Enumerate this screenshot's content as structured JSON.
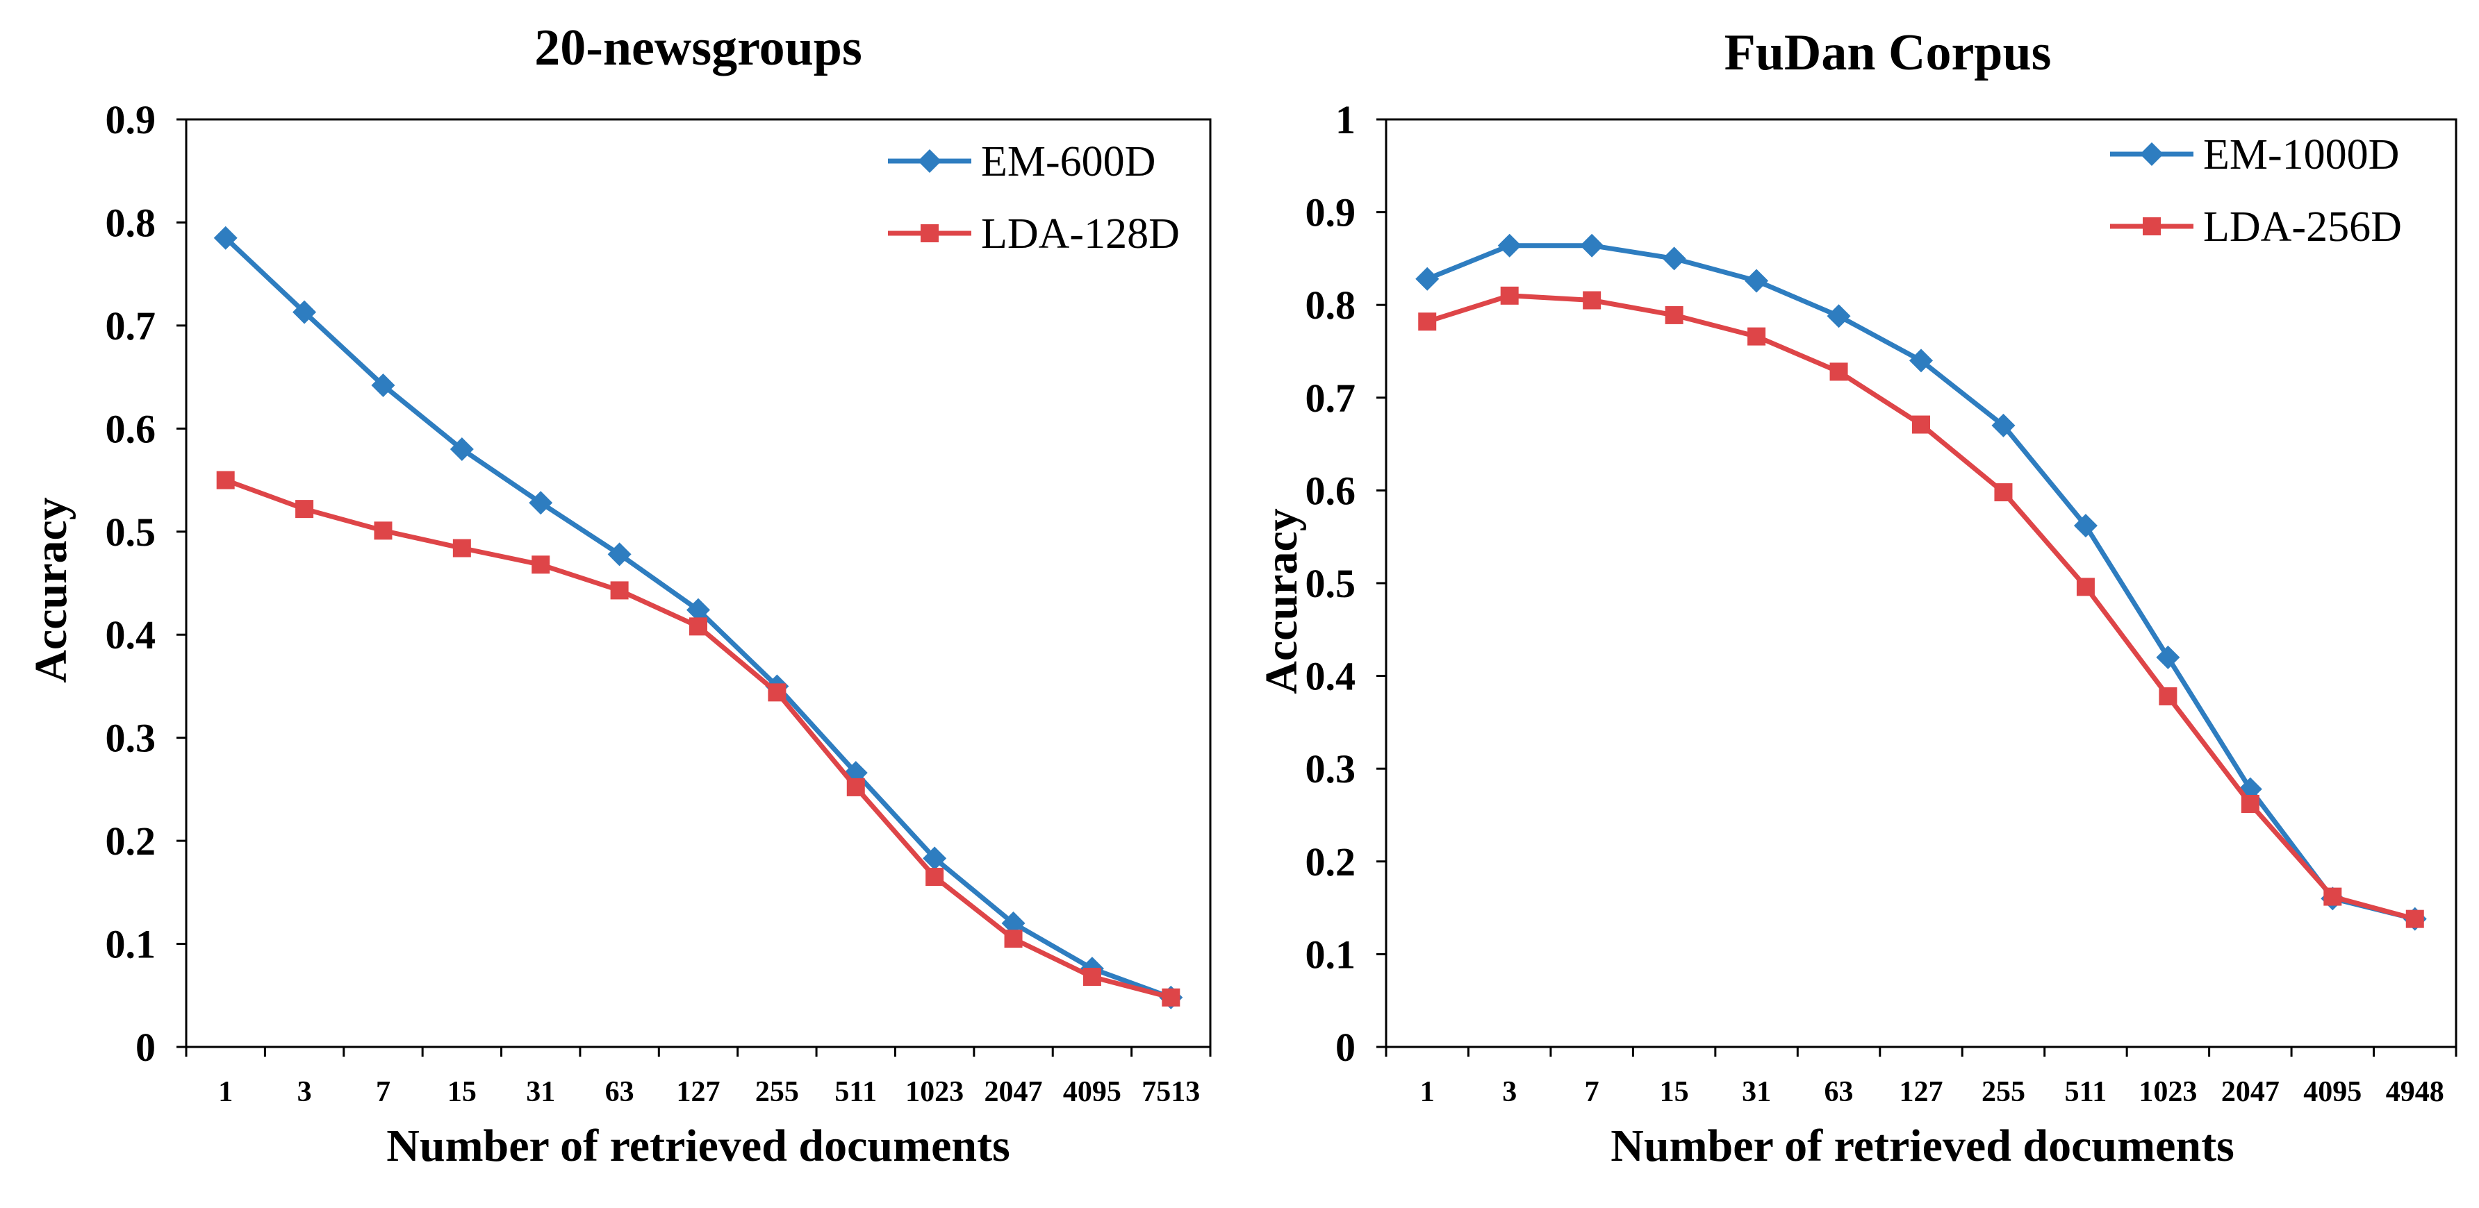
{
  "chart_data": [
    {
      "type": "line",
      "title": "20-newsgroups",
      "xlabel": "Number of retrieved documents",
      "ylabel": "Accuracy",
      "ylim": [
        0,
        0.9
      ],
      "yticks": [
        "0",
        "0.1",
        "0.2",
        "0.3",
        "0.4",
        "0.5",
        "0.6",
        "0.7",
        "0.8",
        "0.9"
      ],
      "categories": [
        "1",
        "3",
        "7",
        "15",
        "31",
        "63",
        "127",
        "255",
        "511",
        "1023",
        "2047",
        "4095",
        "7513"
      ],
      "legend_position": "top-right",
      "grid": false,
      "series": [
        {
          "name": "EM-600D",
          "color": "#2E7DC0",
          "marker": "diamond",
          "values": [
            0.785,
            0.713,
            0.642,
            0.58,
            0.528,
            0.478,
            0.424,
            0.35,
            0.266,
            0.183,
            0.12,
            0.076,
            0.048
          ]
        },
        {
          "name": "LDA-128D",
          "color": "#DE4548",
          "marker": "square",
          "values": [
            0.55,
            0.522,
            0.501,
            0.484,
            0.468,
            0.443,
            0.408,
            0.344,
            0.252,
            0.165,
            0.105,
            0.068,
            0.048
          ]
        }
      ]
    },
    {
      "type": "line",
      "title": "FuDan Corpus",
      "xlabel": "Number of retrieved documents",
      "ylabel": "Accuracy",
      "ylim": [
        0,
        1
      ],
      "yticks": [
        "0",
        "0.1",
        "0.2",
        "0.3",
        "0.4",
        "0.5",
        "0.6",
        "0.7",
        "0.8",
        "0.9",
        "1"
      ],
      "categories": [
        "1",
        "3",
        "7",
        "15",
        "31",
        "63",
        "127",
        "255",
        "511",
        "1023",
        "2047",
        "4095",
        "4948"
      ],
      "legend_position": "top-right",
      "grid": false,
      "series": [
        {
          "name": "EM-1000D",
          "color": "#2E7DC0",
          "marker": "diamond",
          "values": [
            0.828,
            0.864,
            0.864,
            0.85,
            0.826,
            0.788,
            0.74,
            0.67,
            0.562,
            0.42,
            0.278,
            0.16,
            0.138
          ]
        },
        {
          "name": "LDA-256D",
          "color": "#DE4548",
          "marker": "square",
          "values": [
            0.782,
            0.81,
            0.805,
            0.789,
            0.766,
            0.728,
            0.671,
            0.598,
            0.496,
            0.378,
            0.262,
            0.162,
            0.138
          ]
        }
      ]
    }
  ]
}
